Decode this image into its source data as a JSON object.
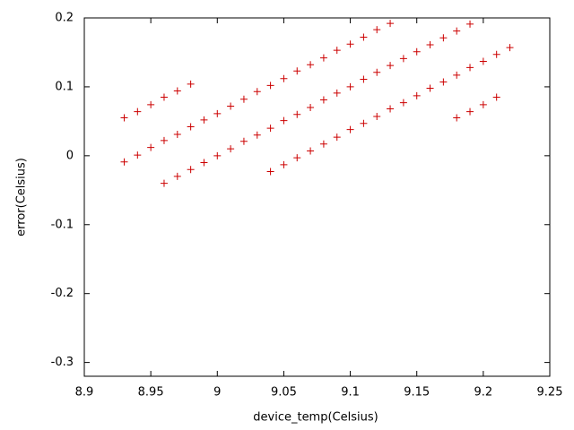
{
  "chart_data": {
    "type": "scatter",
    "xlabel": "device_temp(Celsius)",
    "ylabel": "error(Celsius)",
    "color": "#cc0000",
    "x": [
      8.93,
      8.94,
      8.95,
      8.96,
      8.97,
      8.98,
      8.93,
      8.94,
      8.95,
      8.96,
      8.97,
      8.98,
      8.99,
      9.0,
      9.01,
      9.02,
      9.03,
      9.04,
      9.05,
      9.06,
      9.07,
      9.08,
      9.09,
      9.1,
      9.11,
      9.12,
      9.13,
      8.96,
      8.97,
      8.98,
      8.99,
      9.0,
      9.01,
      9.02,
      9.03,
      9.04,
      9.05,
      9.06,
      9.07,
      9.08,
      9.09,
      9.1,
      9.11,
      9.12,
      9.13,
      9.14,
      9.15,
      9.16,
      9.17,
      9.18,
      9.19,
      9.04,
      9.05,
      9.06,
      9.07,
      9.08,
      9.09,
      9.1,
      9.11,
      9.12,
      9.13,
      9.14,
      9.15,
      9.16,
      9.17,
      9.18,
      9.19,
      9.2,
      9.21,
      9.22,
      9.18,
      9.19,
      9.2,
      9.21
    ],
    "values": [
      0.055,
      0.064,
      0.074,
      0.085,
      0.094,
      0.104,
      -0.009,
      0.001,
      0.012,
      0.022,
      0.031,
      0.042,
      0.052,
      0.061,
      0.072,
      0.082,
      0.093,
      0.102,
      0.112,
      0.123,
      0.132,
      0.142,
      0.153,
      0.162,
      0.172,
      0.183,
      0.192,
      -0.04,
      -0.03,
      -0.02,
      -0.01,
      0.0,
      0.01,
      0.021,
      0.03,
      0.04,
      0.051,
      0.06,
      0.07,
      0.081,
      0.091,
      0.1,
      0.111,
      0.121,
      0.131,
      0.141,
      0.151,
      0.161,
      0.171,
      0.181,
      0.191,
      -0.023,
      -0.013,
      -0.003,
      0.007,
      0.017,
      0.027,
      0.038,
      0.047,
      0.057,
      0.068,
      0.077,
      0.087,
      0.098,
      0.107,
      0.117,
      0.128,
      0.137,
      0.147,
      0.157,
      0.055,
      0.064,
      0.074,
      0.085
    ],
    "xlim": [
      8.9,
      9.25
    ],
    "ylim": [
      -0.32,
      0.2
    ],
    "xticks": [
      8.9,
      8.95,
      9,
      9.05,
      9.1,
      9.15,
      9.2,
      9.25
    ],
    "yticks": [
      -0.3,
      -0.2,
      -0.1,
      0,
      0.1,
      0.2
    ],
    "grid": false
  }
}
